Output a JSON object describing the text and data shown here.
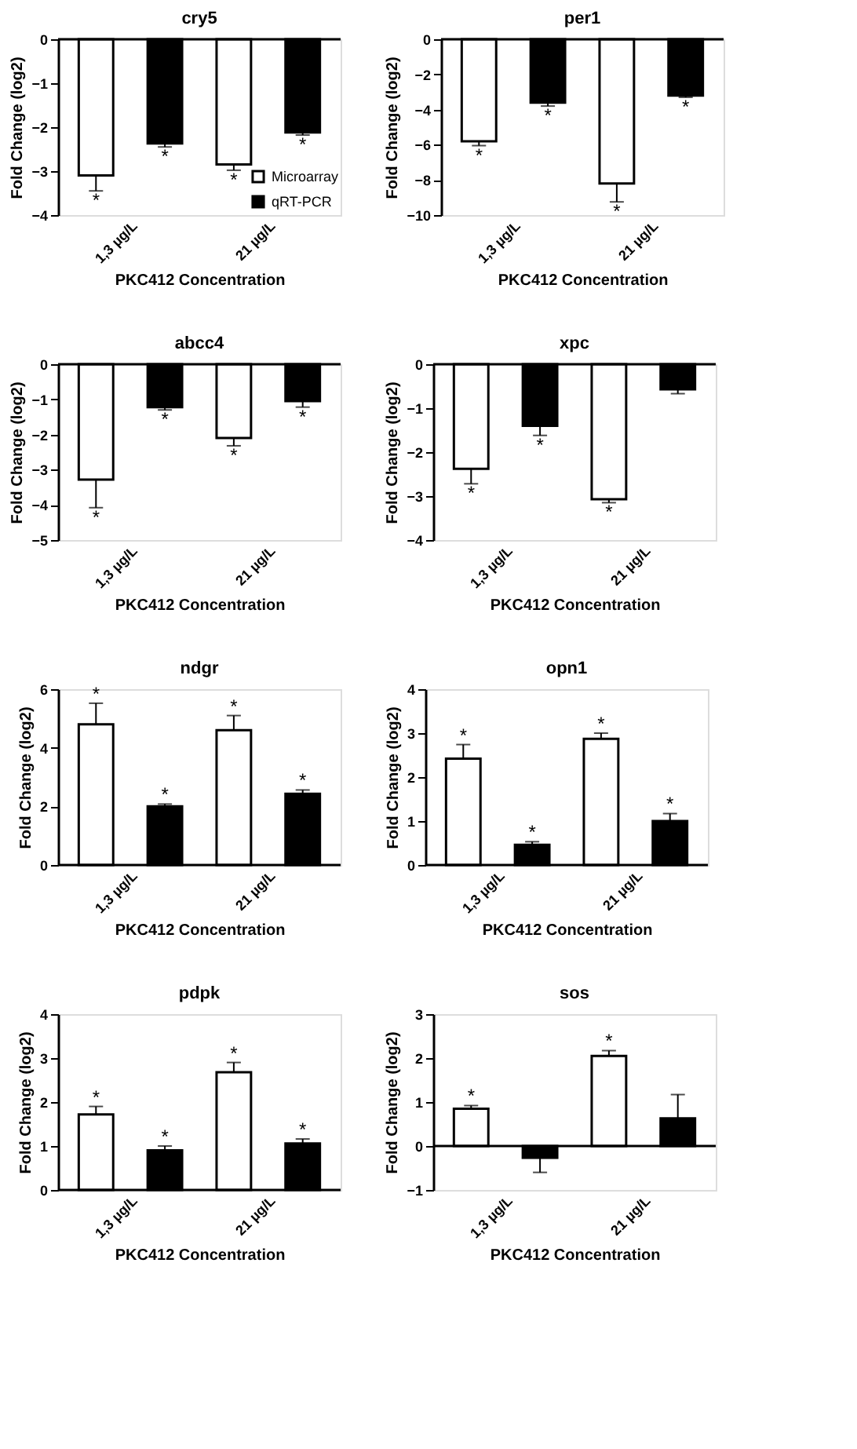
{
  "chart_data": [
    {
      "type": "bar",
      "title": "cry5",
      "xlabel": "PKC412 Concentration",
      "ylabel": "Fold Change (log2)",
      "categories": [
        "1,3 µg/L",
        "21 µg/L"
      ],
      "ylim": [
        -4,
        0
      ],
      "yticks": [
        0,
        -1,
        -2,
        -3,
        -4
      ],
      "legend": "bottom right",
      "series": [
        {
          "name": "Microarray",
          "color": "#ffffff",
          "values": [
            -3.1,
            -2.85
          ],
          "errors": [
            [
              -3.45,
              -3.1
            ],
            [
              -2.98,
              -2.85
            ]
          ],
          "value_labels": [
            "*",
            "*"
          ]
        },
        {
          "name": "qRT-PCR",
          "color": "#000000",
          "values": [
            -2.37,
            -2.12
          ],
          "errors": [
            [
              -2.45,
              -2.37
            ],
            [
              -2.18,
              -2.12
            ]
          ],
          "value_labels": [
            "*",
            "*"
          ]
        }
      ]
    },
    {
      "type": "bar",
      "title": "per1",
      "xlabel": "PKC412 Concentration",
      "ylabel": "Fold Change (log2)",
      "categories": [
        "1,3 µg/L",
        "21 µg/L"
      ],
      "ylim": [
        -10,
        0
      ],
      "yticks": [
        0,
        -2,
        -4,
        -6,
        -8,
        -10
      ],
      "series": [
        {
          "color": "#ffffff",
          "values": [
            -5.8,
            -8.2
          ],
          "errors": [
            [
              -6.05,
              -5.8
            ],
            [
              -9.25,
              -8.2
            ]
          ],
          "value_labels": [
            "*",
            "*"
          ]
        },
        {
          "color": "#000000",
          "values": [
            -3.6,
            -3.2
          ],
          "errors": [
            [
              -3.8,
              -3.6
            ],
            [
              -3.3,
              -3.2
            ]
          ],
          "value_labels": [
            "*",
            "*"
          ]
        }
      ]
    },
    {
      "type": "bar",
      "title": "abcc4",
      "xlabel": "PKC412 Concentration",
      "ylabel": "Fold Change (log2)",
      "categories": [
        "1,3 µg/L",
        "21 µg/L"
      ],
      "ylim": [
        -5,
        0
      ],
      "yticks": [
        0,
        -1,
        -2,
        -3,
        -4,
        -5
      ],
      "series": [
        {
          "color": "#ffffff",
          "values": [
            -3.28,
            -2.1
          ],
          "errors": [
            [
              -4.08,
              -3.28
            ],
            [
              -2.32,
              -2.1
            ]
          ],
          "value_labels": [
            "*",
            "*"
          ]
        },
        {
          "color": "#000000",
          "values": [
            -1.22,
            -1.05
          ],
          "errors": [
            [
              -1.3,
              -1.22
            ],
            [
              -1.22,
              -1.05
            ]
          ],
          "value_labels": [
            "*",
            "*"
          ]
        }
      ]
    },
    {
      "type": "bar",
      "title": "xpc",
      "xlabel": "PKC412 Concentration",
      "ylabel": "Fold Change (log2)",
      "categories": [
        "1,3 µg/L",
        "21 µg/L"
      ],
      "ylim": [
        -4,
        0
      ],
      "yticks": [
        0,
        -1,
        -2,
        -3,
        -4
      ],
      "series": [
        {
          "color": "#ffffff",
          "values": [
            -2.38,
            -3.07
          ],
          "errors": [
            [
              -2.72,
              -2.38
            ],
            [
              -3.15,
              -3.07
            ]
          ],
          "value_labels": [
            "*",
            "*"
          ]
        },
        {
          "color": "#000000",
          "values": [
            -1.4,
            -0.57
          ],
          "errors": [
            [
              -1.62,
              -1.4
            ],
            [
              -0.67,
              -0.57
            ]
          ],
          "value_labels": [
            "*",
            null
          ]
        }
      ]
    },
    {
      "type": "bar",
      "title": "ndgr",
      "xlabel": "PKC412 Concentration",
      "ylabel": "Fold Change (log2)",
      "categories": [
        "1,3 µg/L",
        "21 µg/L"
      ],
      "ylim": [
        0,
        6
      ],
      "yticks": [
        0,
        2,
        4,
        6
      ],
      "series": [
        {
          "color": "#ffffff",
          "values": [
            4.8,
            4.6
          ],
          "errors": [
            [
              4.8,
              5.52
            ],
            [
              4.6,
              5.1
            ]
          ],
          "value_labels": [
            "*",
            "*"
          ]
        },
        {
          "color": "#000000",
          "values": [
            2.0,
            2.43
          ],
          "errors": [
            [
              2.0,
              2.08
            ],
            [
              2.43,
              2.56
            ]
          ],
          "value_labels": [
            "*",
            "*"
          ]
        }
      ]
    },
    {
      "type": "bar",
      "title": "opn1",
      "xlabel": "PKC412 Concentration",
      "ylabel": "Fold Change (log2)",
      "categories": [
        "1,3 µg/L",
        "21 µg/L"
      ],
      "ylim": [
        0,
        4
      ],
      "yticks": [
        0,
        1,
        2,
        3,
        4
      ],
      "series": [
        {
          "color": "#ffffff",
          "values": [
            2.42,
            2.87
          ],
          "errors": [
            [
              2.42,
              2.74
            ],
            [
              2.87,
              3.0
            ]
          ],
          "value_labels": [
            "*",
            "*"
          ]
        },
        {
          "color": "#000000",
          "values": [
            0.46,
            1.0
          ],
          "errors": [
            [
              0.46,
              0.53
            ],
            [
              1.0,
              1.17
            ]
          ],
          "value_labels": [
            "*",
            "*"
          ]
        }
      ]
    },
    {
      "type": "bar",
      "title": "pdpk",
      "xlabel": "PKC412 Concentration",
      "ylabel": "Fold Change (log2)",
      "categories": [
        "1,3 µg/L",
        "21 µg/L"
      ],
      "ylim": [
        0,
        4
      ],
      "yticks": [
        0,
        1,
        2,
        3,
        4
      ],
      "series": [
        {
          "color": "#ffffff",
          "values": [
            1.72,
            2.68
          ],
          "errors": [
            [
              1.72,
              1.9
            ],
            [
              2.68,
              2.9
            ]
          ],
          "value_labels": [
            "*",
            "*"
          ]
        },
        {
          "color": "#000000",
          "values": [
            0.9,
            1.06
          ],
          "errors": [
            [
              0.9,
              1.0
            ],
            [
              1.06,
              1.16
            ]
          ],
          "value_labels": [
            "*",
            "*"
          ]
        }
      ]
    },
    {
      "type": "bar",
      "title": "sos",
      "xlabel": "PKC412 Concentration",
      "ylabel": "Fold Change (log2)",
      "categories": [
        "1,3 µg/L",
        "21 µg/L"
      ],
      "ylim": [
        -1,
        3
      ],
      "yticks": [
        -1,
        0,
        1,
        2,
        3
      ],
      "series": [
        {
          "color": "#ffffff",
          "values": [
            0.85,
            2.05
          ],
          "errors": [
            [
              0.85,
              0.92
            ],
            [
              2.05,
              2.17
            ]
          ],
          "value_labels": [
            "*",
            "*"
          ]
        },
        {
          "color": "#000000",
          "values": [
            -0.27,
            0.63
          ],
          "errors": [
            [
              -0.6,
              -0.27
            ],
            [
              0.63,
              1.17
            ]
          ],
          "value_labels": [
            null,
            null
          ]
        }
      ]
    }
  ]
}
